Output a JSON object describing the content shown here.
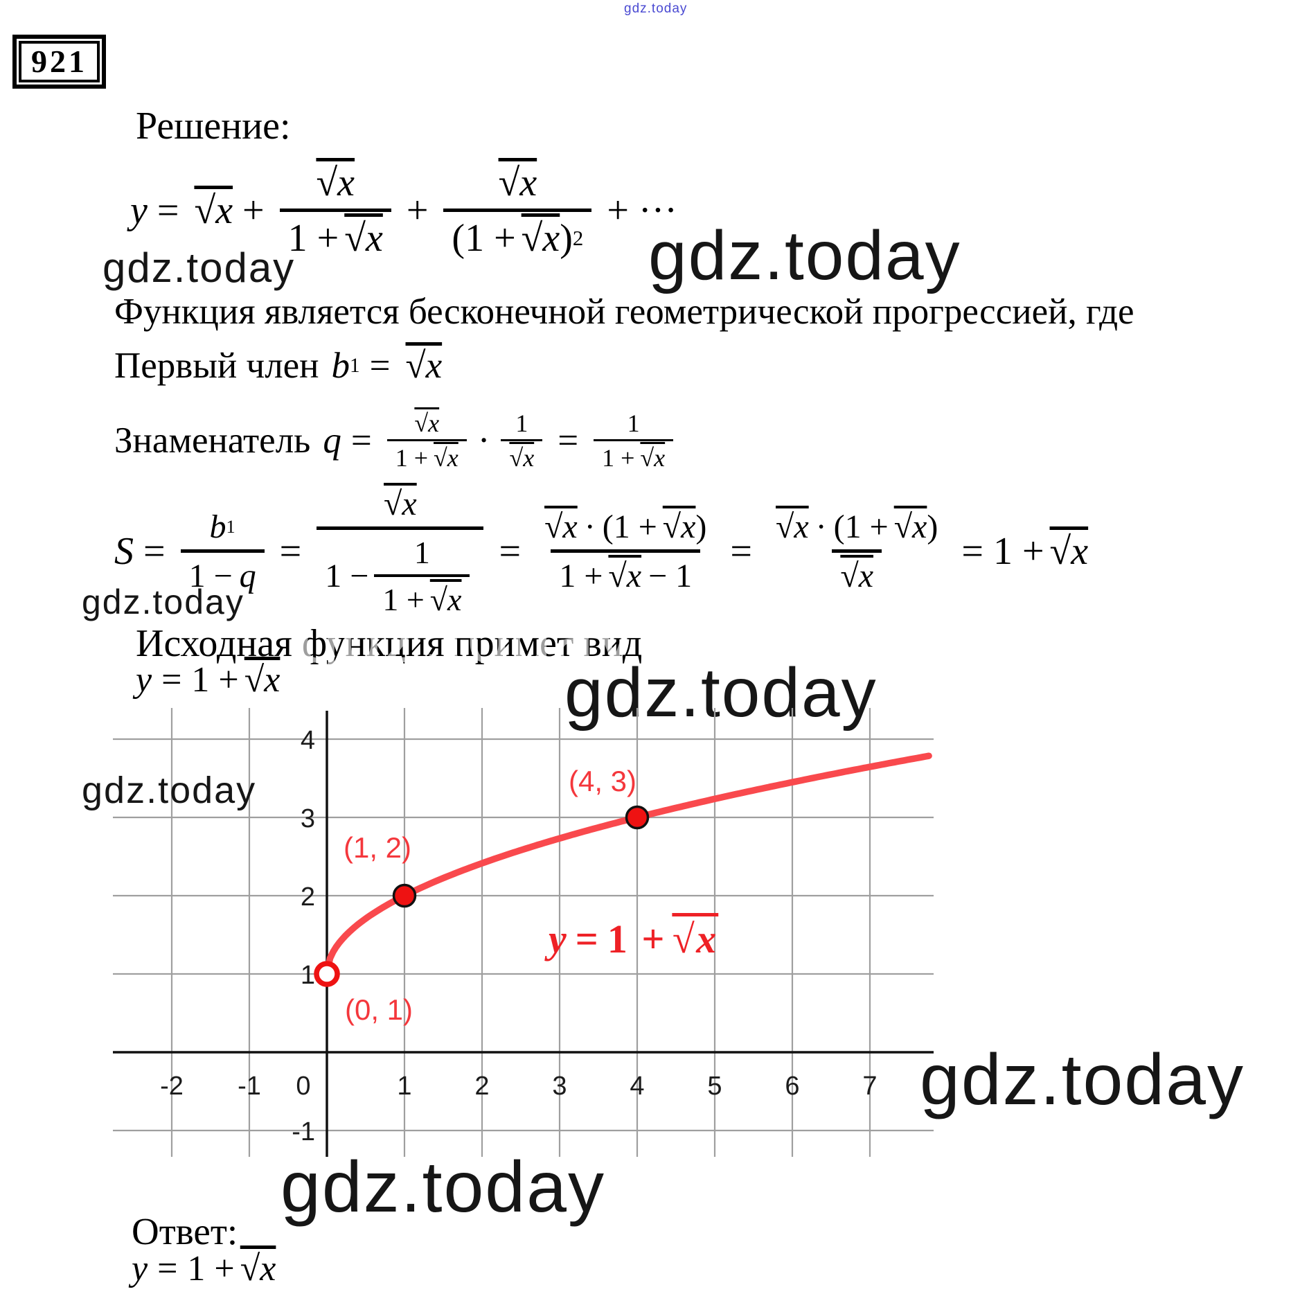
{
  "watermark": {
    "text": "gdz.today",
    "color_dark": "#161616",
    "color_blue": "#4a4ad2"
  },
  "problem": {
    "number": "921"
  },
  "headings": {
    "solution": "Решение:",
    "progression_note": "Функция является бесконечной геометрической прогрессией, где",
    "first_term_label": "Первый член",
    "denominator_label": "Знаменатель",
    "resulting_function": "Исходная функция примет вид",
    "answer_label": "Ответ:"
  },
  "math": {
    "y": "y",
    "x": "x",
    "S": "S",
    "q": "q",
    "b": "b",
    "one": "1",
    "two": "2",
    "eq": "=",
    "plus": "+",
    "minus": "−",
    "cdot": "·",
    "dots": "···",
    "sqrt_x": "√x",
    "one_plus": "1 +",
    "one_minus": "1 −",
    "minus_one": "− 1"
  },
  "formulas": {
    "series": "y = √x + √x/(1+√x) + √x/(1+√x)² + ···",
    "first_term": "b₁ = √x",
    "common_ratio": "q = √x/(1+√x) · 1/√x = 1/(1+√x)",
    "sum": "S = b₁/(1−q) = √x/(1 − 1/(1+√x)) = √x·(1+√x)/(1+√x−1) = √x·(1+√x)/√x = 1 + √x",
    "result": "y = 1 + √x",
    "answer": "y = 1 + √x"
  },
  "chart_data": {
    "type": "line",
    "function": "y = 1 + √x",
    "equation_label": "y = 1 + √x",
    "x_visible_range": [
      -2.75,
      7.78
    ],
    "y_visible_range": [
      -1.45,
      4.4
    ],
    "x_ticks": [
      -2,
      -1,
      0,
      1,
      2,
      3,
      4,
      5,
      6,
      7
    ],
    "y_ticks": [
      -1,
      1,
      2,
      3,
      4
    ],
    "grid": true,
    "grid_color": "#9f9f9f",
    "axis_color": "#111111",
    "tick_label_color": "#1b1b1b",
    "curve": {
      "expr": "1 + sqrt(x)",
      "x_from": 0,
      "x_to": 7.78,
      "color": "#f9494d"
    },
    "point_color": "#ee1212",
    "label_color": "#f4373c",
    "points": [
      {
        "x": 0,
        "y": 1,
        "label": "(0, 1)",
        "style": "open"
      },
      {
        "x": 1,
        "y": 2,
        "label": "(1, 2)",
        "style": "filled"
      },
      {
        "x": 4,
        "y": 3,
        "label": "(4, 3)",
        "style": "filled"
      }
    ]
  }
}
